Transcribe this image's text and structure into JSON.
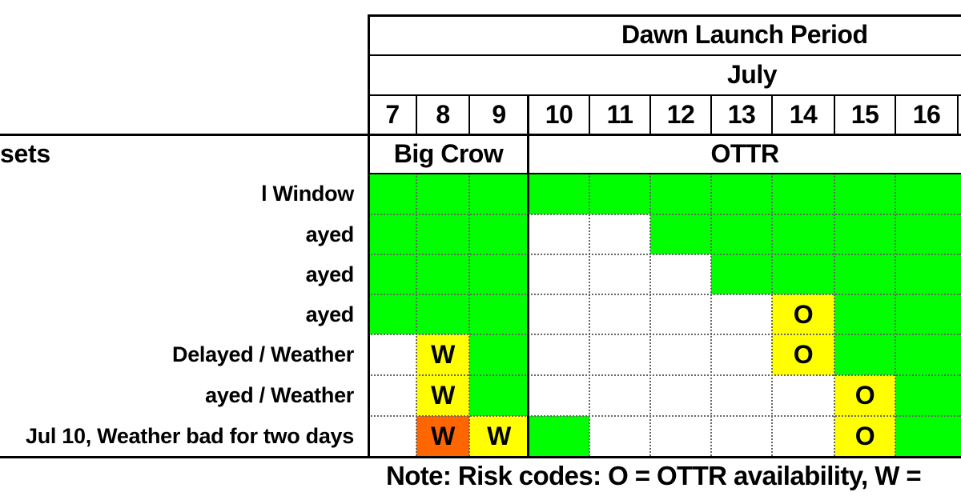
{
  "table": {
    "title": "Dawn Launch Period",
    "month": "July",
    "days": [
      "7",
      "8",
      "9",
      "10",
      "11",
      "12",
      "13",
      "14",
      "15",
      "16"
    ],
    "providers": [
      {
        "label": "Big Crow",
        "span": 3
      },
      {
        "label": "OTTR",
        "span": 7
      }
    ],
    "row_header": "sets",
    "rows": [
      {
        "label": "l Window",
        "cells": [
          [
            "g",
            ""
          ],
          [
            "g",
            ""
          ],
          [
            "g",
            ""
          ],
          [
            "g",
            ""
          ],
          [
            "g",
            ""
          ],
          [
            "g",
            ""
          ],
          [
            "g",
            ""
          ],
          [
            "g",
            ""
          ],
          [
            "g",
            ""
          ],
          [
            "g",
            ""
          ]
        ]
      },
      {
        "label": "ayed",
        "cells": [
          [
            "g",
            ""
          ],
          [
            "g",
            ""
          ],
          [
            "g",
            ""
          ],
          [
            "w",
            ""
          ],
          [
            "w",
            ""
          ],
          [
            "g",
            ""
          ],
          [
            "g",
            ""
          ],
          [
            "g",
            ""
          ],
          [
            "g",
            ""
          ],
          [
            "g",
            ""
          ]
        ]
      },
      {
        "label": "ayed",
        "cells": [
          [
            "g",
            ""
          ],
          [
            "g",
            ""
          ],
          [
            "g",
            ""
          ],
          [
            "w",
            ""
          ],
          [
            "w",
            ""
          ],
          [
            "w",
            ""
          ],
          [
            "g",
            ""
          ],
          [
            "g",
            ""
          ],
          [
            "g",
            ""
          ],
          [
            "g",
            ""
          ]
        ]
      },
      {
        "label": "ayed",
        "cells": [
          [
            "g",
            ""
          ],
          [
            "g",
            ""
          ],
          [
            "g",
            ""
          ],
          [
            "w",
            ""
          ],
          [
            "w",
            ""
          ],
          [
            "w",
            ""
          ],
          [
            "w",
            ""
          ],
          [
            "y",
            "O"
          ],
          [
            "g",
            ""
          ],
          [
            "g",
            ""
          ]
        ]
      },
      {
        "label": " Delayed / Weather",
        "cells": [
          [
            "w",
            ""
          ],
          [
            "y",
            "W"
          ],
          [
            "g",
            ""
          ],
          [
            "w",
            ""
          ],
          [
            "w",
            ""
          ],
          [
            "w",
            ""
          ],
          [
            "w",
            ""
          ],
          [
            "y",
            "O"
          ],
          [
            "g",
            ""
          ],
          [
            "g",
            ""
          ]
        ]
      },
      {
        "label": "ayed / Weather",
        "cells": [
          [
            "w",
            ""
          ],
          [
            "y",
            "W"
          ],
          [
            "g",
            ""
          ],
          [
            "w",
            ""
          ],
          [
            "w",
            ""
          ],
          [
            "w",
            ""
          ],
          [
            "w",
            ""
          ],
          [
            "w",
            ""
          ],
          [
            "y",
            "O"
          ],
          [
            "g",
            ""
          ]
        ]
      },
      {
        "label": "Jul 10, Weather bad for two days",
        "cells": [
          [
            "w",
            ""
          ],
          [
            "o",
            "W"
          ],
          [
            "y",
            "W"
          ],
          [
            "g",
            ""
          ],
          [
            "w",
            ""
          ],
          [
            "w",
            ""
          ],
          [
            "w",
            ""
          ],
          [
            "w",
            ""
          ],
          [
            "y",
            "O"
          ],
          [
            "g",
            ""
          ]
        ]
      }
    ],
    "colors": {
      "g": "#00ff00",
      "y": "#ffff00",
      "o": "#ff6600",
      "w": "#ffffff"
    }
  },
  "note": "Note: Risk codes: O = OTTR availability, W ="
}
